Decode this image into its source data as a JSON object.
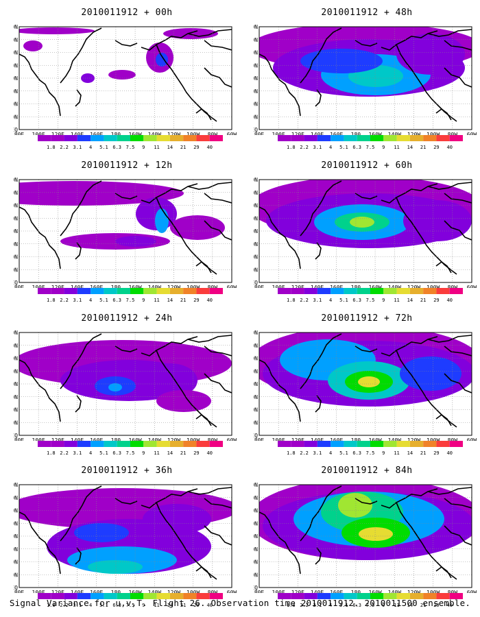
{
  "caption": "Signal Variance for u,v,T. Flight 26. Observation time 2010011912. 2010011500 ensemble.",
  "lat_labels": [
    "80N",
    "70N",
    "60N",
    "50N",
    "40N",
    "30N",
    "20N",
    "10N",
    "EQ"
  ],
  "lon_labels": [
    "80E",
    "100E",
    "120E",
    "140E",
    "160E",
    "180",
    "160W",
    "140W",
    "120W",
    "100W",
    "80W",
    "60W"
  ],
  "colorbar": {
    "labels": [
      "1.8",
      "2.2",
      "3.1",
      "4",
      "5.1",
      "6.3",
      "7.5",
      "9",
      "11",
      "14",
      "21",
      "29",
      "40"
    ],
    "colors": [
      "#a000c8",
      "#8200dc",
      "#1e3cff",
      "#00a0ff",
      "#00c8c8",
      "#00d28c",
      "#00dc00",
      "#a0e632",
      "#e6dc32",
      "#e6af2d",
      "#f08228",
      "#fa3c3c",
      "#f00082"
    ]
  },
  "panels": [
    {
      "id": "p00",
      "title": "2010011912 + 00h",
      "level": 0
    },
    {
      "id": "p12",
      "title": "2010011912 + 12h",
      "level": 1
    },
    {
      "id": "p24",
      "title": "2010011912 + 24h",
      "level": 2
    },
    {
      "id": "p36",
      "title": "2010011912 + 36h",
      "level": 3
    },
    {
      "id": "p48",
      "title": "2010011912 + 48h",
      "level": 4
    },
    {
      "id": "p60",
      "title": "2010011912 + 60h",
      "level": 5
    },
    {
      "id": "p72",
      "title": "2010011912 + 72h",
      "level": 6
    },
    {
      "id": "p84",
      "title": "2010011912 + 84h",
      "level": 7
    }
  ]
}
